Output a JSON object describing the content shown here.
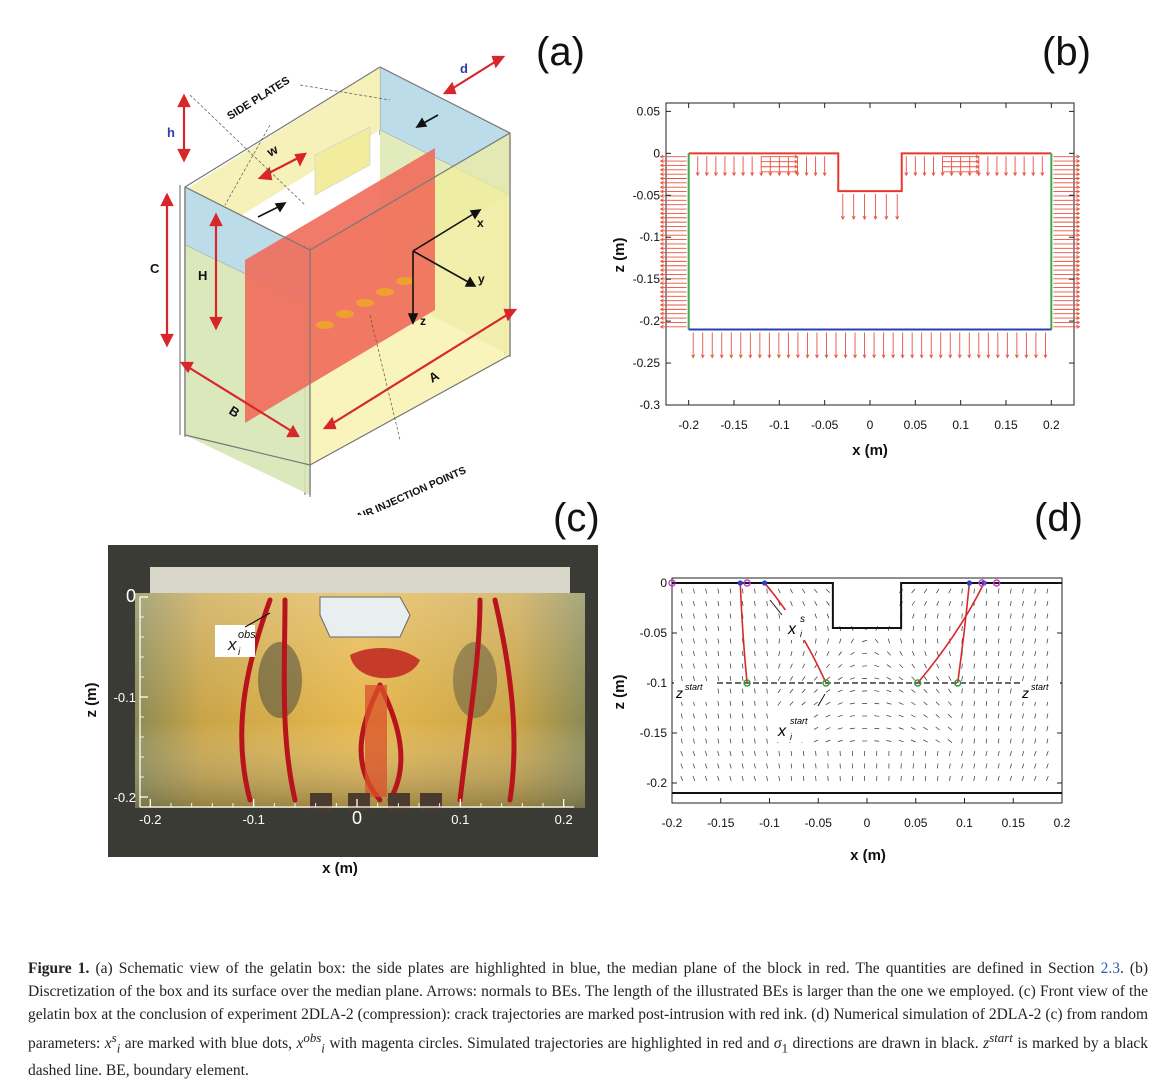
{
  "panel_a": {
    "label": "(a)",
    "labels": {
      "side_plates": "SIDE PLATES",
      "d": "d",
      "h": "h",
      "w": "w",
      "c": "C",
      "H": "H",
      "x": "x",
      "y": "y",
      "z": "z",
      "A": "A",
      "B": "B",
      "air_injection": "AIR INJECTION POINTS"
    }
  },
  "panel_b": {
    "label": "(b)",
    "y_ticks": [
      "0.05",
      "0",
      "-0.05",
      "-0.1",
      "-0.15",
      "-0.2",
      "-0.25",
      "-0.3"
    ],
    "x_ticks": [
      "-0.2",
      "-0.15",
      "-0.1",
      "-0.05",
      "0",
      "0.05",
      "0.1",
      "0.15",
      "0.2"
    ],
    "xlabel": "x (m)",
    "ylabel": "z (m)"
  },
  "panel_c": {
    "label": "(c)",
    "y_ticks": [
      "0",
      "-0.1",
      "-0.2"
    ],
    "x_ticks": [
      "-0.2",
      "-0.1",
      "0",
      "0.1",
      "0.2"
    ],
    "xlabel": "x (m)",
    "ylabel": "z (m)",
    "annotation": "x",
    "annotation_sup": "obs",
    "annotation_sub": "i"
  },
  "panel_d": {
    "label": "(d)",
    "y_ticks": [
      "0",
      "-0.05",
      "-0.1",
      "-0.15",
      "-0.2"
    ],
    "x_ticks": [
      "-0.2",
      "-0.15",
      "-0.1",
      "-0.05",
      "0",
      "0.05",
      "0.1",
      "0.15",
      "0.2"
    ],
    "xlabel": "x (m)",
    "ylabel": "z (m)",
    "zstart": "z",
    "zstart_sup": "start",
    "xs": "x",
    "xs_sup": "s",
    "xs_sub": "i",
    "xstart": "x",
    "xstart_sup": "start",
    "xstart_sub": "i"
  },
  "caption": {
    "lead": "Figure 1.",
    "p1": " (a) Schematic view of the gelatin box: the side plates are highlighted in blue, the median plane of the block in red. The quantities are defined in Section ",
    "link": "2.3",
    "p2": ". (b) Discretization of the box and its surface over the median plane. Arrows: normals to BEs. The length of the illustrated BEs is larger than the one we employed. (c) Front view of the gelatin box at the conclusion of experiment 2DLA-2 (compression): crack trajectories are marked post-intrusion with red ink. (d) Numerical simulation of 2DLA-2 (c) from random parameters: ",
    "xs_sym": "x",
    "xs_sup": "s",
    "xs_sub": "i",
    "p3": " are marked with blue dots, ",
    "xobs_sym": "x",
    "xobs_sup": "obs",
    "xobs_sub": "i",
    "p4": " with magenta circles. Simulated trajectories are highlighted in red and ",
    "sigma": "σ",
    "sigma_sub": "1",
    "p5": " directions are drawn in black. ",
    "zstart_sym": "z",
    "zstart_sup": "start",
    "p6": " is marked by a black dashed line. BE, boundary element."
  }
}
